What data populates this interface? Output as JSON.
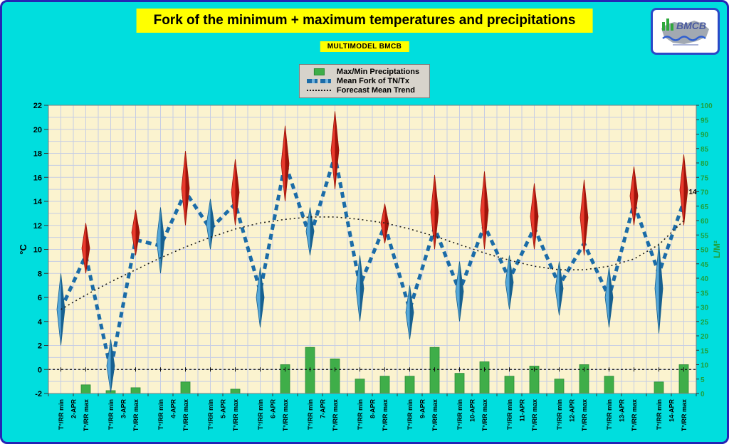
{
  "header": {
    "title": "Fork of the minimum + maximum temperatures and precipitations",
    "subtitle": "MULTIMODEL BMCB"
  },
  "logo": {
    "text": "BMCB"
  },
  "legend": {
    "items": [
      {
        "label": "Max/Min Preciptations",
        "swatch": "bar",
        "color": "#3fae49"
      },
      {
        "label": "Mean Fork of TN/Tx",
        "swatch": "dashed",
        "color": "#1b6ca8"
      },
      {
        "label": "Forecast Mean Trend",
        "swatch": "dotted",
        "color": "#1a1a1a"
      }
    ]
  },
  "chart_data": {
    "type": "line",
    "subtype": "combo: precipitation bars (right axis) + dashed min/max temperature zigzag with forecast-fork spikes + dotted trend (left axis)",
    "title": "Fork of the minimum + maximum temperatures and precipitations",
    "days": [
      "2-APR",
      "3-APR",
      "4-APR",
      "5-APR",
      "6-APR",
      "7-APR",
      "8-APR",
      "9-APR",
      "10-APR",
      "11-APR",
      "12-APR",
      "13-APR",
      "14-APR"
    ],
    "x_labels": {
      "min": "T°/RR min",
      "max": "T°/RR max"
    },
    "left_axis": {
      "title": "°C",
      "min": -2,
      "max": 22,
      "step": 2
    },
    "right_axis": {
      "title": "L/M²",
      "min": 0,
      "max": 100,
      "step": 5
    },
    "mean_tn_tx": [
      5,
      9.5,
      0,
      10.8,
      10.3,
      14.8,
      11.7,
      13.8,
      6.5,
      17.2,
      11,
      17.8,
      7,
      12,
      5,
      11.8,
      6.5,
      12,
      7.5,
      11.8,
      7,
      10.5,
      6,
      13.8,
      8,
      14
    ],
    "fork_min": [
      [
        2,
        8
      ],
      [
        -1.9,
        2.5
      ],
      [
        8,
        13.5
      ],
      [
        10,
        14.2
      ],
      [
        3.5,
        8.5
      ],
      [
        9.5,
        13.5
      ],
      [
        4,
        9.5
      ],
      [
        2.5,
        7
      ],
      [
        4,
        9
      ],
      [
        5,
        9.5
      ],
      [
        4.5,
        9
      ],
      [
        3.5,
        8.5
      ],
      [
        3,
        10.5
      ]
    ],
    "fork_max": [
      [
        8,
        12.2
      ],
      [
        9.5,
        13.3
      ],
      [
        12,
        18.2
      ],
      [
        12,
        17.5
      ],
      [
        14,
        20.3
      ],
      [
        15,
        21.5
      ],
      [
        10.5,
        13.8
      ],
      [
        10,
        16.2
      ],
      [
        10,
        16.5
      ],
      [
        10,
        15.5
      ],
      [
        9.5,
        15.8
      ],
      [
        12,
        16.9
      ],
      [
        12,
        17.9
      ]
    ],
    "precip": [
      0,
      3,
      1,
      2,
      0,
      4,
      0,
      1.5,
      0,
      10,
      16,
      12,
      5,
      6,
      6,
      16,
      7,
      11,
      6,
      9.5,
      5,
      10,
      6,
      0,
      4,
      10
    ],
    "trend": [
      5,
      6.2,
      7.3,
      8.3,
      9.3,
      10.2,
      11,
      11.7,
      12.2,
      12.5,
      12.7,
      12.7,
      12.5,
      12.2,
      11.7,
      11.1,
      10.4,
      9.7,
      9.1,
      8.6,
      8.3,
      8.3,
      8.6,
      9.2,
      10.4,
      12.4
    ],
    "annotations": [
      {
        "text": "14",
        "x_index": 25,
        "value": 14.6
      }
    ],
    "colors": {
      "plot_bg": "#fbf3cf",
      "grid": "#c6cde4",
      "bar": "#3fae49",
      "bar_edge": "#2c8a36",
      "mean": "#1b6ca8",
      "fork_min": "#56a8d8",
      "fork_min_dark": "#17608f",
      "fork_max": "#e8392b",
      "fork_max_dark": "#9e140b",
      "trend": "#1a1a1a",
      "axis_right": "#1fa03c"
    }
  }
}
